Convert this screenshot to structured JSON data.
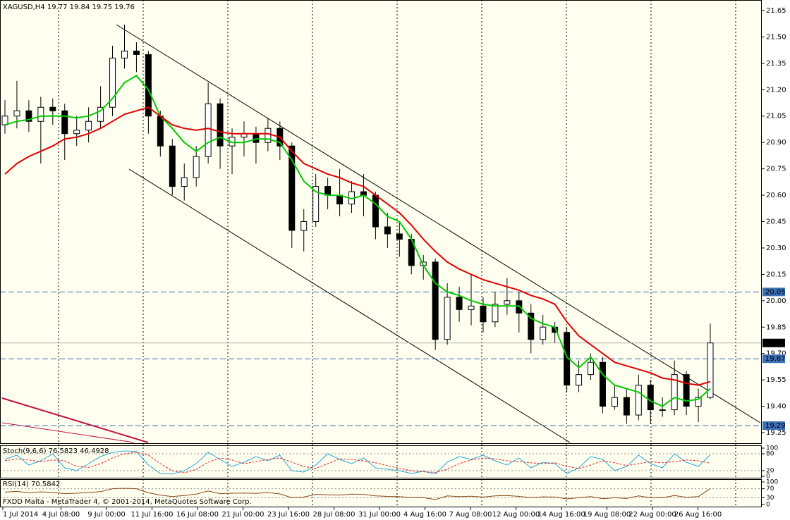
{
  "chart_data": {
    "type": "candlestick",
    "title": "XAGUSD,H4  19.77 19.84 19.75 19.76",
    "footer": "FXDD Malta - MetaTrader 4, © 2001-2014, MetaQuotes Software Corp.",
    "x_labels": [
      "1 Jul 2014",
      "4 Jul 08:00",
      "9 Jul 00:00",
      "11 Jul 16:00",
      "16 Jul 08:00",
      "21 Jul 00:00",
      "23 Jul 16:00",
      "28 Jul 08:00",
      "31 Jul 00:00",
      "4 Aug 16:00",
      "7 Aug 08:00",
      "12 Aug 00:00",
      "14 Aug 16:00",
      "19 Aug 08:00",
      "22 Aug 00:00",
      "26 Aug 16:00"
    ],
    "ylim": [
      19.194,
      21.698
    ],
    "yticks": [
      21.65,
      {
        "value": 21.5,
        "label": "21.50"
      },
      21.35,
      {
        "value": 21.2,
        "label": "21.20"
      },
      21.05,
      {
        "value": 20.9,
        "label": "20.90"
      },
      20.75,
      {
        "value": 20.6,
        "label": "20.60"
      },
      20.45,
      {
        "value": 20.3,
        "label": "20.30"
      },
      20.15,
      {
        "value": 20,
        "label": "20.00"
      },
      19.85,
      {
        "value": 19.7,
        "label": "19.70"
      },
      19.55,
      {
        "value": 19.4,
        "label": "19.40"
      },
      19.25
    ],
    "candles": {
      "open": [
        21.0,
        21.05,
        21.08,
        21.02,
        21.1,
        21.08,
        20.95,
        20.97,
        21.02,
        21.1,
        21.38,
        21.42,
        21.4,
        21.05,
        20.88,
        20.65,
        20.7,
        20.82,
        21.12,
        20.88,
        20.93,
        20.95,
        20.9,
        20.98,
        20.88,
        20.4,
        20.45,
        20.65,
        20.6,
        20.55,
        20.62,
        20.6,
        20.42,
        20.38,
        20.35,
        20.2,
        20.22,
        19.78,
        20.02,
        19.95,
        19.97,
        19.88,
        19.98,
        20.0,
        19.93,
        19.78,
        19.85,
        19.82,
        19.52,
        19.58,
        19.65,
        19.4,
        19.45,
        19.35,
        19.52,
        19.38,
        19.38,
        19.58,
        19.4,
        19.45
      ],
      "high": [
        21.14,
        21.25,
        21.14,
        21.16,
        21.15,
        21.12,
        21.05,
        21.1,
        21.22,
        21.45,
        21.57,
        21.47,
        21.42,
        21.08,
        20.92,
        20.78,
        20.88,
        21.24,
        21.15,
        20.98,
        21.02,
        20.99,
        21.04,
        21.02,
        20.9,
        20.52,
        20.72,
        20.7,
        20.75,
        20.68,
        20.72,
        20.62,
        20.5,
        20.45,
        20.38,
        20.26,
        20.24,
        20.1,
        20.08,
        20.15,
        20.02,
        20.05,
        20.13,
        20.05,
        19.98,
        19.92,
        19.88,
        19.85,
        19.66,
        19.7,
        19.68,
        19.52,
        19.5,
        19.58,
        19.55,
        19.45,
        19.66,
        19.6,
        19.5,
        19.87
      ],
      "low": [
        20.95,
        20.98,
        20.96,
        20.78,
        21.0,
        20.8,
        20.88,
        20.9,
        20.98,
        21.05,
        21.32,
        21.3,
        20.95,
        20.82,
        20.6,
        20.57,
        20.65,
        20.78,
        20.75,
        20.72,
        20.82,
        20.78,
        20.85,
        20.8,
        20.3,
        20.28,
        20.42,
        20.52,
        20.48,
        20.5,
        20.48,
        20.35,
        20.3,
        20.25,
        20.15,
        20.12,
        19.72,
        19.75,
        19.88,
        19.86,
        19.82,
        19.85,
        19.92,
        19.82,
        19.7,
        19.75,
        19.76,
        19.48,
        19.48,
        19.55,
        19.36,
        19.38,
        19.3,
        19.32,
        19.3,
        19.34,
        19.35,
        19.35,
        19.31,
        19.44
      ],
      "close": [
        21.05,
        21.08,
        21.02,
        21.1,
        21.08,
        20.95,
        20.97,
        21.02,
        21.1,
        21.38,
        21.42,
        21.4,
        21.05,
        20.88,
        20.65,
        20.7,
        20.82,
        21.12,
        20.88,
        20.93,
        20.95,
        20.9,
        20.98,
        20.88,
        20.4,
        20.45,
        20.65,
        20.6,
        20.55,
        20.62,
        20.6,
        20.42,
        20.38,
        20.35,
        20.2,
        20.22,
        19.78,
        20.02,
        19.95,
        19.97,
        19.88,
        19.98,
        20.0,
        19.93,
        19.78,
        19.85,
        19.82,
        19.52,
        19.58,
        19.65,
        19.4,
        19.45,
        19.35,
        19.52,
        19.38,
        19.38,
        19.58,
        19.4,
        19.45,
        19.76
      ]
    },
    "overlays": [
      {
        "color": "#00cc00",
        "values": [
          21.0,
          21.02,
          21.03,
          21.05,
          21.05,
          21.05,
          21.04,
          21.05,
          21.08,
          21.15,
          21.24,
          21.28,
          21.2,
          21.05,
          20.98,
          20.9,
          20.85,
          20.9,
          20.93,
          20.9,
          20.9,
          20.92,
          20.92,
          20.9,
          20.8,
          20.68,
          20.62,
          20.6,
          20.6,
          20.58,
          20.6,
          20.55,
          20.48,
          20.45,
          20.35,
          20.2,
          20.1,
          20.05,
          20.03,
          20.0,
          19.98,
          19.97,
          19.97,
          19.97,
          19.9,
          19.87,
          19.85,
          19.68,
          19.62,
          19.68,
          19.58,
          19.52,
          19.5,
          19.48,
          19.43,
          19.4,
          19.45,
          19.43,
          19.44,
          19.5
        ]
      },
      {
        "color": "#e00000",
        "values": [
          20.72,
          20.78,
          20.82,
          20.85,
          20.88,
          20.92,
          20.93,
          20.95,
          20.98,
          21.02,
          21.06,
          21.08,
          21.1,
          21.05,
          21.0,
          20.98,
          20.97,
          20.98,
          20.96,
          20.95,
          20.95,
          20.95,
          20.95,
          20.93,
          20.85,
          20.78,
          20.75,
          20.72,
          20.7,
          20.67,
          20.65,
          20.6,
          20.55,
          20.5,
          20.43,
          20.35,
          20.28,
          20.22,
          20.18,
          20.15,
          20.12,
          20.1,
          20.08,
          20.06,
          20.03,
          20.01,
          19.98,
          19.88,
          19.8,
          19.75,
          19.7,
          19.65,
          19.63,
          19.61,
          19.59,
          19.56,
          19.55,
          19.53,
          19.52,
          19.54
        ]
      }
    ],
    "levels": [
      20.05,
      19.67,
      19.29
    ],
    "level_color": "#3b6fb6",
    "bid": 19.76,
    "indicators": [
      {
        "label": "Stoch(9,6,6) 76.5823 46.4928",
        "ylim": [
          0,
          100
        ],
        "yticks": [
          100,
          80,
          20,
          0
        ],
        "lines": [
          {
            "color": "#2aa7d6",
            "dashed": false,
            "values": [
              60,
              75,
              40,
              55,
              80,
              30,
              20,
              45,
              70,
              85,
              90,
              88,
              40,
              10,
              8,
              20,
              45,
              85,
              60,
              35,
              50,
              70,
              55,
              75,
              20,
              15,
              40,
              80,
              60,
              45,
              65,
              30,
              25,
              20,
              10,
              18,
              8,
              50,
              70,
              60,
              75,
              55,
              40,
              65,
              30,
              50,
              45,
              10,
              30,
              70,
              60,
              20,
              35,
              75,
              45,
              30,
              80,
              50,
              35,
              76.58
            ]
          },
          {
            "color": "#e02020",
            "dashed": true,
            "values": [
              55,
              62,
              58,
              52,
              58,
              55,
              35,
              32,
              45,
              65,
              80,
              85,
              75,
              45,
              20,
              12,
              25,
              50,
              65,
              58,
              45,
              52,
              60,
              65,
              50,
              35,
              28,
              45,
              62,
              60,
              55,
              48,
              38,
              28,
              20,
              16,
              14,
              25,
              45,
              58,
              65,
              62,
              55,
              52,
              48,
              45,
              48,
              35,
              28,
              40,
              55,
              48,
              38,
              45,
              52,
              48,
              52,
              58,
              55,
              46.49
            ]
          }
        ]
      },
      {
        "label": "RSI(14) 70.5842",
        "ylim": [
          0,
          100
        ],
        "yticks": [
          100,
          70,
          30,
          0
        ],
        "lines": [
          {
            "color": "#8b4513",
            "dashed": false,
            "values": [
              55,
              58,
              52,
              56,
              54,
              48,
              50,
              53,
              57,
              70,
              72,
              70,
              52,
              42,
              35,
              40,
              46,
              60,
              48,
              50,
              51,
              49,
              53,
              47,
              30,
              33,
              45,
              43,
              42,
              46,
              45,
              38,
              36,
              35,
              30,
              31,
              22,
              38,
              35,
              37,
              33,
              38,
              40,
              36,
              30,
              34,
              33,
              25,
              30,
              35,
              26,
              30,
              27,
              38,
              30,
              30,
              40,
              32,
              35,
              70.58
            ]
          }
        ]
      }
    ]
  }
}
